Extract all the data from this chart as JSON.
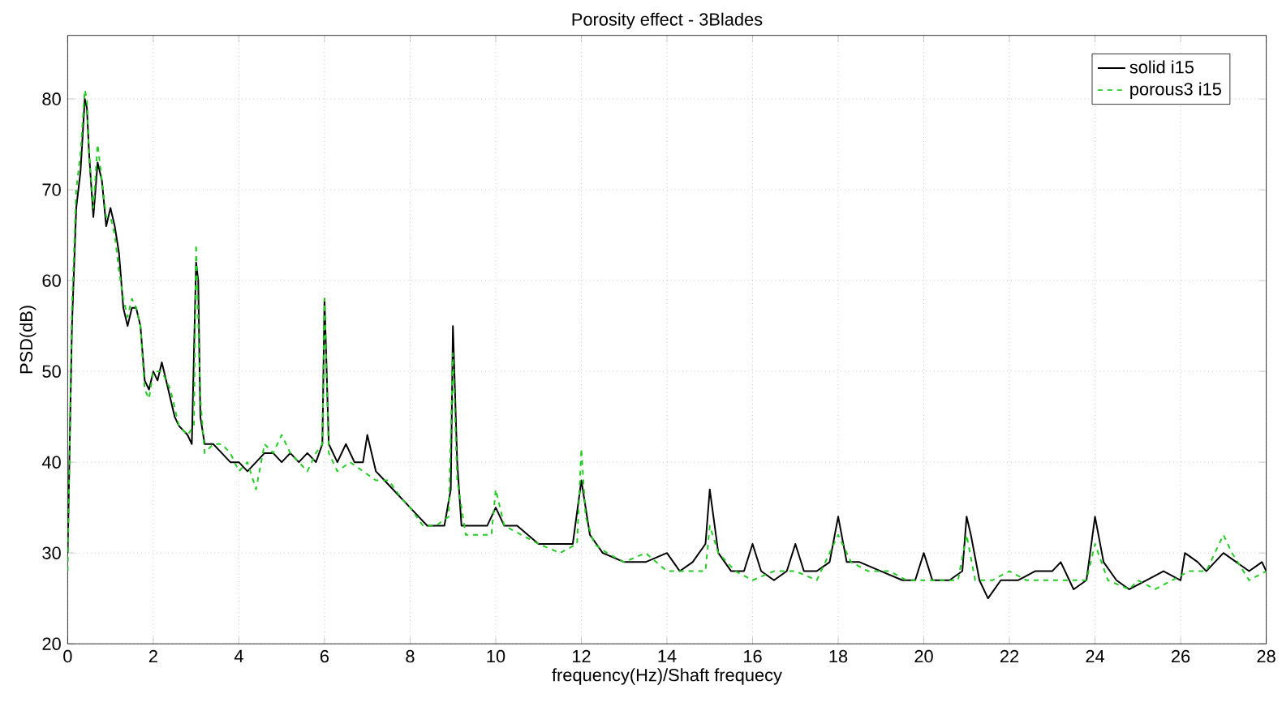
{
  "chart_data": {
    "type": "line",
    "title": "Porosity effect - 3Blades",
    "xlabel": "frequency(Hz)/Shaft frequecy",
    "ylabel": "PSD(dB)",
    "xlim": [
      0,
      28
    ],
    "ylim": [
      20,
      87
    ],
    "xticks": [
      0,
      2,
      4,
      6,
      8,
      10,
      12,
      14,
      16,
      18,
      20,
      22,
      24,
      26,
      28
    ],
    "yticks": [
      20,
      30,
      40,
      50,
      60,
      70,
      80
    ],
    "grid": true,
    "legend": "top right",
    "series": [
      {
        "name": "solid i15",
        "color": "#000000",
        "line_style": "solid",
        "x": [
          0,
          0.1,
          0.2,
          0.3,
          0.4,
          0.45,
          0.5,
          0.6,
          0.7,
          0.8,
          0.9,
          1.0,
          1.1,
          1.2,
          1.3,
          1.4,
          1.5,
          1.6,
          1.7,
          1.8,
          1.9,
          2.0,
          2.1,
          2.2,
          2.3,
          2.5,
          2.6,
          2.8,
          2.9,
          3.0,
          3.05,
          3.1,
          3.2,
          3.4,
          3.6,
          3.8,
          4.0,
          4.2,
          4.4,
          4.6,
          4.8,
          5.0,
          5.2,
          5.4,
          5.6,
          5.8,
          5.95,
          6.0,
          6.1,
          6.3,
          6.5,
          6.7,
          6.9,
          7.0,
          7.2,
          7.4,
          7.6,
          7.8,
          8.0,
          8.2,
          8.4,
          8.6,
          8.8,
          8.95,
          9.0,
          9.1,
          9.2,
          9.4,
          9.6,
          9.8,
          10.0,
          10.2,
          10.5,
          11,
          11.5,
          11.8,
          12.0,
          12.2,
          12.5,
          13,
          13.5,
          14,
          14.3,
          14.6,
          14.9,
          15.0,
          15.2,
          15.5,
          15.8,
          16.0,
          16.2,
          16.5,
          16.8,
          17.0,
          17.2,
          17.5,
          17.8,
          18.0,
          18.2,
          18.5,
          19,
          19.5,
          19.8,
          20.0,
          20.2,
          20.6,
          20.9,
          21.0,
          21.1,
          21.3,
          21.5,
          21.8,
          22.2,
          22.6,
          23.0,
          23.2,
          23.5,
          23.8,
          24.0,
          24.2,
          24.5,
          24.8,
          25.2,
          25.6,
          26.0,
          26.1,
          26.4,
          26.6,
          27,
          27.3,
          27.6,
          27.9,
          28
        ],
        "values": [
          30,
          55,
          68,
          72,
          80,
          79,
          74,
          67,
          73,
          71,
          66,
          68,
          66,
          63,
          57,
          55,
          57,
          57,
          55,
          49,
          48,
          50,
          49,
          51,
          49,
          45,
          44,
          43,
          42,
          62,
          60,
          45,
          42,
          42,
          41,
          40,
          40,
          39,
          40,
          41,
          41,
          40,
          41,
          40,
          41,
          40,
          42,
          58,
          42,
          40,
          42,
          40,
          40,
          43,
          39,
          38,
          37,
          36,
          35,
          34,
          33,
          33,
          33,
          37,
          55,
          40,
          33,
          33,
          33,
          33,
          35,
          33,
          33,
          31,
          31,
          31,
          38,
          32,
          30,
          29,
          29,
          30,
          28,
          29,
          31,
          37,
          30,
          28,
          28,
          31,
          28,
          27,
          28,
          31,
          28,
          28,
          29,
          34,
          29,
          29,
          28,
          27,
          27,
          30,
          27,
          27,
          28,
          34,
          32,
          27,
          25,
          27,
          27,
          28,
          28,
          29,
          26,
          27,
          34,
          29,
          27,
          26,
          27,
          28,
          27,
          30,
          29,
          28,
          30,
          29,
          28,
          29,
          28
        ]
      },
      {
        "name": "porous3 i15",
        "color": "#22cc22",
        "line_style": "dashed",
        "x": [
          0,
          0.1,
          0.2,
          0.3,
          0.4,
          0.45,
          0.5,
          0.6,
          0.7,
          0.8,
          0.9,
          1.0,
          1.1,
          1.2,
          1.3,
          1.4,
          1.5,
          1.6,
          1.7,
          1.8,
          1.9,
          2.0,
          2.2,
          2.4,
          2.6,
          2.8,
          2.95,
          3.0,
          3.1,
          3.2,
          3.4,
          3.6,
          3.8,
          4.0,
          4.2,
          4.4,
          4.6,
          4.8,
          5.0,
          5.2,
          5.4,
          5.6,
          5.8,
          5.95,
          6.0,
          6.1,
          6.3,
          6.6,
          6.9,
          7.2,
          7.5,
          7.8,
          8.0,
          8.3,
          8.6,
          8.9,
          9.0,
          9.1,
          9.3,
          9.6,
          9.9,
          10.0,
          10.2,
          10.6,
          11.0,
          11.5,
          11.9,
          12.0,
          12.1,
          12.3,
          12.6,
          13,
          13.5,
          14,
          14.5,
          14.9,
          15.0,
          15.2,
          15.6,
          16.0,
          16.5,
          17,
          17.5,
          18.0,
          18.3,
          18.7,
          19.2,
          19.6,
          20.0,
          20.4,
          20.8,
          21.0,
          21.2,
          21.6,
          22.0,
          22.4,
          22.8,
          23.3,
          23.8,
          24.0,
          24.3,
          24.8,
          25.0,
          25.4,
          25.8,
          26.2,
          26.6,
          27.0,
          27.2,
          27.6,
          28
        ],
        "values": [
          28,
          57,
          70,
          74,
          81,
          80,
          74,
          68,
          75,
          71,
          67,
          67,
          65,
          61,
          58,
          56,
          58,
          57,
          55,
          48,
          47,
          50,
          50,
          48,
          44,
          43,
          44,
          64,
          47,
          41,
          42,
          42,
          41,
          39,
          40,
          37,
          42,
          41,
          43,
          41,
          40,
          39,
          41,
          42,
          58,
          41,
          39,
          40,
          39,
          38,
          38,
          36,
          35,
          33,
          33,
          34,
          52,
          38,
          32,
          32,
          32,
          37,
          33,
          32,
          31,
          30,
          31,
          41.5,
          34,
          31,
          30,
          29,
          30,
          28,
          28,
          28,
          33,
          30,
          28,
          27,
          28,
          28,
          27,
          32,
          29,
          28,
          28,
          27,
          27,
          27,
          27,
          32,
          27,
          27,
          28,
          27,
          27,
          27,
          27,
          31,
          27,
          26,
          27,
          26,
          27,
          28,
          28,
          32,
          30,
          27,
          28
        ]
      }
    ]
  }
}
